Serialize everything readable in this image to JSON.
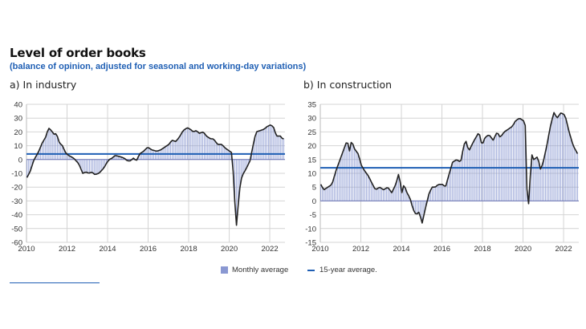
{
  "header": {
    "title": "Level of order books",
    "subtitle": "(balance of opinion, adjusted for seasonal and working-day variations)"
  },
  "legend": {
    "bars_label": "Monthly average",
    "line_label": "15-year average.",
    "bar_color": "#8a98d2",
    "line_color": "#1f5fb4",
    "series_line_color": "#222222"
  },
  "chart_data": [
    {
      "id": "industry",
      "type": "bar",
      "title": "a)  In industry",
      "xlabel": "",
      "ylabel": "",
      "x_ticks": [
        "2010",
        "2012",
        "2014",
        "2016",
        "2018",
        "2020",
        "2022"
      ],
      "y_ticks": [
        "40",
        "30",
        "20",
        "10",
        "0",
        "-10",
        "-20",
        "-30",
        "-40",
        "-50",
        "-60"
      ],
      "xlim": [
        2010,
        2022.75
      ],
      "ylim": [
        -60,
        40
      ],
      "grid": true,
      "average_15y": 4,
      "series": [
        {
          "name": "Monthly average",
          "kind": "bars+line",
          "keyframes": [
            [
              2010.0,
              -13
            ],
            [
              2010.15,
              -9
            ],
            [
              2010.35,
              0
            ],
            [
              2010.55,
              5
            ],
            [
              2010.75,
              12
            ],
            [
              2010.95,
              17
            ],
            [
              2011.05,
              23
            ],
            [
              2011.2,
              21
            ],
            [
              2011.35,
              18
            ],
            [
              2011.45,
              19
            ],
            [
              2011.6,
              12
            ],
            [
              2011.75,
              10
            ],
            [
              2011.9,
              5
            ],
            [
              2012.05,
              3
            ],
            [
              2012.3,
              1
            ],
            [
              2012.55,
              -3
            ],
            [
              2012.75,
              -10
            ],
            [
              2012.9,
              -9
            ],
            [
              2013.05,
              -10
            ],
            [
              2013.2,
              -9
            ],
            [
              2013.35,
              -11
            ],
            [
              2013.55,
              -10
            ],
            [
              2013.8,
              -6
            ],
            [
              2013.95,
              -2
            ],
            [
              2014.05,
              0
            ],
            [
              2014.2,
              1
            ],
            [
              2014.35,
              3
            ],
            [
              2014.6,
              2
            ],
            [
              2014.8,
              1
            ],
            [
              2014.95,
              -1
            ],
            [
              2015.1,
              -1
            ],
            [
              2015.25,
              1
            ],
            [
              2015.4,
              -1
            ],
            [
              2015.55,
              4
            ],
            [
              2015.75,
              6
            ],
            [
              2015.95,
              9
            ],
            [
              2016.15,
              7
            ],
            [
              2016.4,
              6
            ],
            [
              2016.6,
              7
            ],
            [
              2016.8,
              9
            ],
            [
              2017.0,
              11
            ],
            [
              2017.15,
              14
            ],
            [
              2017.35,
              13
            ],
            [
              2017.55,
              17
            ],
            [
              2017.7,
              21
            ],
            [
              2017.9,
              23
            ],
            [
              2018.05,
              22
            ],
            [
              2018.2,
              20
            ],
            [
              2018.35,
              21
            ],
            [
              2018.5,
              19
            ],
            [
              2018.7,
              20
            ],
            [
              2018.85,
              17
            ],
            [
              2019.05,
              15
            ],
            [
              2019.2,
              15
            ],
            [
              2019.4,
              11
            ],
            [
              2019.6,
              11
            ],
            [
              2019.8,
              8
            ],
            [
              2020.0,
              6
            ],
            [
              2020.1,
              5
            ],
            [
              2020.2,
              -15
            ],
            [
              2020.28,
              -40
            ],
            [
              2020.35,
              -50
            ],
            [
              2020.45,
              -25
            ],
            [
              2020.6,
              -12
            ],
            [
              2020.8,
              -7
            ],
            [
              2021.0,
              -1
            ],
            [
              2021.15,
              10
            ],
            [
              2021.3,
              20
            ],
            [
              2021.5,
              21
            ],
            [
              2021.7,
              22
            ],
            [
              2021.85,
              24
            ],
            [
              2022.0,
              25
            ],
            [
              2022.15,
              24
            ],
            [
              2022.3,
              17
            ],
            [
              2022.5,
              17
            ],
            [
              2022.6,
              15
            ],
            [
              2022.75,
              15
            ]
          ]
        }
      ]
    },
    {
      "id": "construction",
      "type": "bar",
      "title": "b)  In construction",
      "xlabel": "",
      "ylabel": "",
      "x_ticks": [
        "2010",
        "2012",
        "2014",
        "2016",
        "2018",
        "2020",
        "2022"
      ],
      "y_ticks": [
        "35",
        "30",
        "25",
        "20",
        "15",
        "10",
        "5",
        "0",
        "-5",
        "-10",
        "-15"
      ],
      "xlim": [
        2010,
        2022.75
      ],
      "ylim": [
        -15,
        35
      ],
      "grid": true,
      "average_15y": 12,
      "series": [
        {
          "name": "Monthly average",
          "kind": "bars+line",
          "keyframes": [
            [
              2010.0,
              6
            ],
            [
              2010.15,
              4
            ],
            [
              2010.35,
              5
            ],
            [
              2010.55,
              6
            ],
            [
              2010.75,
              11
            ],
            [
              2010.95,
              15
            ],
            [
              2011.15,
              19
            ],
            [
              2011.3,
              22
            ],
            [
              2011.42,
              18
            ],
            [
              2011.52,
              22
            ],
            [
              2011.65,
              19
            ],
            [
              2011.85,
              17
            ],
            [
              2012.0,
              13
            ],
            [
              2012.15,
              11
            ],
            [
              2012.35,
              9
            ],
            [
              2012.55,
              6
            ],
            [
              2012.7,
              4
            ],
            [
              2012.9,
              5
            ],
            [
              2013.1,
              4
            ],
            [
              2013.3,
              5
            ],
            [
              2013.5,
              3
            ],
            [
              2013.7,
              6
            ],
            [
              2013.85,
              10
            ],
            [
              2014.0,
              3
            ],
            [
              2014.1,
              6
            ],
            [
              2014.25,
              3
            ],
            [
              2014.4,
              1
            ],
            [
              2014.55,
              -3
            ],
            [
              2014.7,
              -5
            ],
            [
              2014.85,
              -4
            ],
            [
              2015.0,
              -8
            ],
            [
              2015.15,
              -3
            ],
            [
              2015.35,
              3
            ],
            [
              2015.5,
              5
            ],
            [
              2015.65,
              5
            ],
            [
              2015.8,
              6
            ],
            [
              2016.0,
              6
            ],
            [
              2016.15,
              5
            ],
            [
              2016.3,
              9
            ],
            [
              2016.5,
              14
            ],
            [
              2016.7,
              15
            ],
            [
              2016.9,
              14
            ],
            [
              2017.05,
              20
            ],
            [
              2017.15,
              22
            ],
            [
              2017.3,
              18
            ],
            [
              2017.5,
              21
            ],
            [
              2017.65,
              23
            ],
            [
              2017.8,
              25
            ],
            [
              2017.95,
              20
            ],
            [
              2018.1,
              23
            ],
            [
              2018.3,
              24
            ],
            [
              2018.5,
              22
            ],
            [
              2018.7,
              25
            ],
            [
              2018.85,
              23
            ],
            [
              2019.05,
              25
            ],
            [
              2019.25,
              26
            ],
            [
              2019.45,
              27
            ],
            [
              2019.6,
              29
            ],
            [
              2019.8,
              30
            ],
            [
              2020.0,
              29
            ],
            [
              2020.1,
              27
            ],
            [
              2020.2,
              -7
            ],
            [
              2020.3,
              5
            ],
            [
              2020.4,
              17
            ],
            [
              2020.5,
              15
            ],
            [
              2020.7,
              16
            ],
            [
              2020.85,
              11
            ],
            [
              2021.0,
              15
            ],
            [
              2021.15,
              20
            ],
            [
              2021.35,
              28
            ],
            [
              2021.5,
              32
            ],
            [
              2021.65,
              30
            ],
            [
              2021.85,
              32
            ],
            [
              2022.05,
              31
            ],
            [
              2022.25,
              25
            ],
            [
              2022.45,
              20
            ],
            [
              2022.6,
              18
            ],
            [
              2022.75,
              16
            ]
          ]
        }
      ]
    }
  ]
}
